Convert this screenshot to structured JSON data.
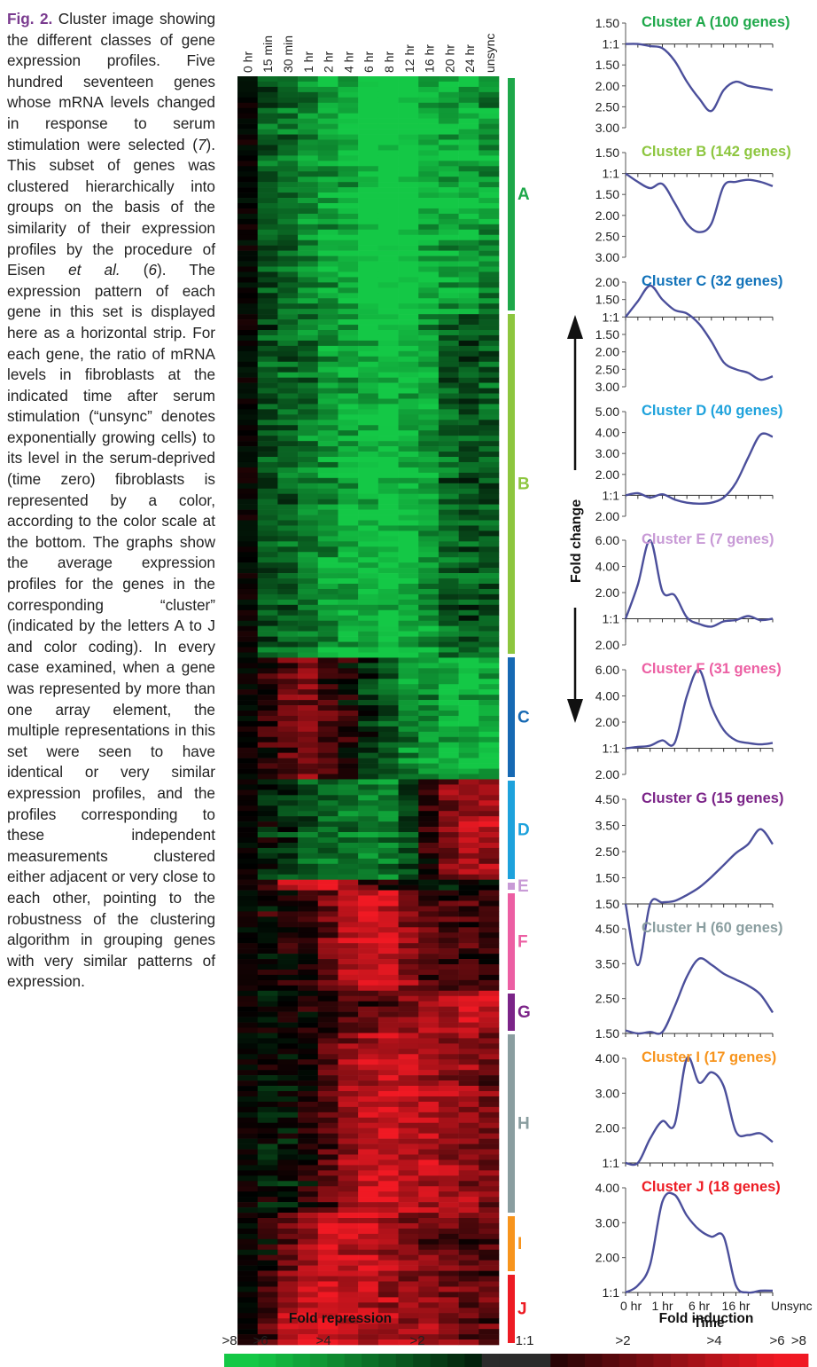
{
  "caption": {
    "label": "Fig. 2.",
    "text_before_ref1": " Cluster image showing the different classes of gene expression profiles. Five hundred seventeen genes whose mRNA levels changed in response to serum stimulation were selected (",
    "ref1": "7",
    "text_before_ref2": "). This subset of genes was clustered hierarchically into groups on the basis of the similarity of their expression profiles by the procedure of Eisen ",
    "etal": "et al.",
    "ref2_open": " (",
    "ref2": "6",
    "text_rest": "). The expression pattern of each gene in this set is displayed here as a horizontal strip. For each gene, the ratio of mRNA levels in fibroblasts at the indicated time after serum stimulation (“unsync” denotes exponentially growing cells) to its level in the serum-deprived (time zero) fibroblasts is represented by a color, according to the color scale at the bottom. The graphs show the average expression profiles for the genes in the corresponding “cluster” (indicated by the letters A to J and color coding). In every case examined, when a gene was represented by more than one array element, the multiple representations in this set were seen to have identical or very similar expression profiles, and the profiles corresponding to these independent measurements clustered either adjacent or very close to each other, pointing to the robustness of the clustering algorithm in grouping genes with very similar patterns of expression."
  },
  "heatmap": {
    "time_points": [
      "0 hr",
      "15 min",
      "30 min",
      "1 hr",
      "2 hr",
      "4 hr",
      "6 hr",
      "8 hr",
      "12 hr",
      "16 hr",
      "20 hr",
      "24 hr",
      "unsync"
    ],
    "clusters": [
      {
        "letter": "A",
        "color": "#1ea84a",
        "pattern": [
          0,
          -1.3,
          -1.5,
          -2.0,
          -2.4,
          -2.6,
          -3.4,
          -3.6,
          -3.4,
          -2.6,
          -2.5,
          -2.7,
          -2.2
        ]
      },
      {
        "letter": "B",
        "color": "#8dc63f",
        "pattern": [
          0,
          -1.2,
          -1.5,
          -1.8,
          -2.2,
          -2.5,
          -2.8,
          -3.0,
          -2.8,
          -2.3,
          -1.5,
          -1.2,
          -1.4
        ]
      },
      {
        "letter": "C",
        "color": "#1669b3",
        "pattern": [
          0,
          0.6,
          1.2,
          1.6,
          0.9,
          0.3,
          -0.6,
          -1.4,
          -1.9,
          -2.2,
          -2.6,
          -2.7,
          -2.6
        ]
      },
      {
        "letter": "D",
        "color": "#1ea2dc",
        "pattern": [
          0,
          -0.4,
          -0.8,
          -1.2,
          -1.6,
          -1.8,
          -1.9,
          -1.8,
          -1.2,
          0.6,
          1.6,
          2.2,
          2.0
        ]
      },
      {
        "letter": "E",
        "color": "#c89ad6",
        "pattern": [
          0,
          0.6,
          2.4,
          3.2,
          3.0,
          2.4,
          1.0,
          0.4,
          -0.2,
          -0.4,
          -0.3,
          -0.2,
          0.0
        ]
      },
      {
        "letter": "F",
        "color": "#ec5fa3",
        "pattern": [
          0,
          0.2,
          0.4,
          0.6,
          1.4,
          2.2,
          2.8,
          2.8,
          1.8,
          1.0,
          0.8,
          0.8,
          0.6
        ]
      },
      {
        "letter": "G",
        "color": "#7b2488",
        "pattern": [
          0,
          -0.2,
          0.0,
          0.2,
          0.4,
          0.8,
          1.0,
          1.2,
          1.6,
          1.9,
          2.2,
          2.5,
          2.3
        ]
      },
      {
        "letter": "H",
        "color": "#8a9ea0",
        "pattern": [
          0,
          -0.3,
          -0.3,
          0.2,
          1.0,
          1.8,
          2.4,
          2.6,
          2.4,
          2.2,
          2.0,
          1.8,
          1.4
        ]
      },
      {
        "letter": "I",
        "color": "#f7941d",
        "pattern": [
          0,
          0.4,
          1.2,
          1.8,
          2.8,
          2.4,
          2.6,
          2.2,
          1.6,
          1.3,
          1.2,
          1.1,
          0.9
        ]
      },
      {
        "letter": "J",
        "color": "#ed1c24",
        "pattern": [
          0,
          0.8,
          2.0,
          2.6,
          2.8,
          2.6,
          2.2,
          2.0,
          1.8,
          1.6,
          1.4,
          1.2,
          1.0
        ]
      }
    ]
  },
  "chart_data": [
    {
      "type": "line",
      "title": "Cluster A (100 genes)",
      "color": "#1ea84a",
      "y_tick_labels": [
        "1.50",
        "1:1",
        "1.50",
        "2.00",
        "2.50",
        "3.00"
      ],
      "x": [
        0,
        1,
        2,
        3,
        4,
        5,
        6,
        7,
        8,
        9,
        10,
        11,
        12
      ],
      "values": [
        1.0,
        1.0,
        -1.05,
        -1.1,
        -1.4,
        -1.9,
        -2.3,
        -2.6,
        -2.1,
        -1.9,
        -2.0,
        -2.05,
        -2.1
      ]
    },
    {
      "type": "line",
      "title": "Cluster B (142 genes)",
      "color": "#8dc63f",
      "y_tick_labels": [
        "1.50",
        "1:1",
        "1.50",
        "2.00",
        "2.50",
        "3.00"
      ],
      "x": [
        0,
        1,
        2,
        3,
        4,
        5,
        6,
        7,
        8,
        9,
        10,
        11,
        12
      ],
      "values": [
        1.0,
        -1.2,
        -1.35,
        -1.25,
        -1.7,
        -2.2,
        -2.4,
        -2.2,
        -1.3,
        -1.2,
        -1.15,
        -1.2,
        -1.3
      ]
    },
    {
      "type": "line",
      "title": "Cluster C (32 genes)",
      "color": "#1172b9",
      "y_tick_labels": [
        "2.00",
        "1.50",
        "1:1",
        "1.50",
        "2.00",
        "2.50",
        "3.00"
      ],
      "x": [
        0,
        1,
        2,
        3,
        4,
        5,
        6,
        7,
        8,
        9,
        10,
        11,
        12
      ],
      "values": [
        1.0,
        1.45,
        1.9,
        1.5,
        1.2,
        1.1,
        -1.2,
        -1.7,
        -2.3,
        -2.5,
        -2.6,
        -2.8,
        -2.7
      ]
    },
    {
      "type": "line",
      "title": "Cluster D (40 genes)",
      "color": "#1ea2dc",
      "y_tick_labels": [
        "5.00",
        "4.00",
        "3.00",
        "2.00",
        "1:1",
        "2.00"
      ],
      "x": [
        0,
        1,
        2,
        3,
        4,
        5,
        6,
        7,
        8,
        9,
        10,
        11,
        12
      ],
      "values": [
        1.0,
        1.1,
        -1.1,
        1.05,
        -1.2,
        -1.35,
        -1.4,
        -1.35,
        -1.1,
        1.6,
        2.8,
        3.9,
        3.8
      ]
    },
    {
      "type": "line",
      "title": "Cluster E (7 genes)",
      "color": "#c89ad6",
      "y_tick_labels": [
        "6.00",
        "4.00",
        "2.00",
        "1:1",
        "2.00"
      ],
      "x": [
        0,
        1,
        2,
        3,
        4,
        5,
        6,
        7,
        8,
        9,
        10,
        11,
        12
      ],
      "values": [
        1.0,
        2.6,
        6.4,
        2.1,
        1.9,
        1.05,
        -1.2,
        -1.3,
        -1.1,
        -1.05,
        1.1,
        -1.05,
        1.0
      ]
    },
    {
      "type": "line",
      "title": "Cluster F (31 genes)",
      "color": "#ec5fa3",
      "y_tick_labels": [
        "6.00",
        "4.00",
        "2.00",
        "1:1",
        "2.00"
      ],
      "x": [
        0,
        1,
        2,
        3,
        4,
        5,
        6,
        7,
        8,
        9,
        10,
        11,
        12
      ],
      "values": [
        1.0,
        1.05,
        1.1,
        1.3,
        1.2,
        4.0,
        6.4,
        3.2,
        1.7,
        1.3,
        1.2,
        1.15,
        1.2
      ]
    },
    {
      "type": "line",
      "title": "Cluster G (15 genes)",
      "color": "#7b2488",
      "y_tick_labels": [
        "4.50",
        "3.50",
        "2.50",
        "1.50",
        "1.50"
      ],
      "x": [
        0,
        1,
        2,
        3,
        4,
        5,
        6,
        7,
        8,
        9,
        10,
        11,
        12
      ],
      "values": [
        1.0,
        -1.05,
        1.0,
        1.05,
        1.1,
        1.3,
        1.55,
        1.9,
        2.3,
        2.7,
        3.0,
        3.5,
        3.0
      ]
    },
    {
      "type": "line",
      "title": "Cluster H (60 genes)",
      "color": "#8a9ea0",
      "y_tick_labels": [
        "4.50",
        "3.50",
        "2.50",
        "1.50"
      ],
      "x": [
        0,
        1,
        2,
        3,
        4,
        5,
        6,
        7,
        8,
        9,
        10,
        11,
        12
      ],
      "values": [
        1.1,
        1.0,
        1.05,
        1.05,
        1.9,
        2.9,
        3.5,
        3.3,
        3.0,
        2.8,
        2.6,
        2.3,
        1.7
      ]
    },
    {
      "type": "line",
      "title": "Cluster I (17 genes)",
      "color": "#f7941d",
      "y_tick_labels": [
        "4.00",
        "3.00",
        "2.00",
        "1:1"
      ],
      "x": [
        0,
        1,
        2,
        3,
        4,
        5,
        6,
        7,
        8,
        9,
        10,
        11,
        12
      ],
      "values": [
        1.0,
        1.0,
        1.7,
        2.2,
        2.1,
        4.0,
        3.3,
        3.6,
        3.2,
        1.9,
        1.8,
        1.85,
        1.6
      ]
    },
    {
      "type": "line",
      "title": "Cluster J (18 genes)",
      "color": "#ed1c24",
      "y_tick_labels": [
        "4.00",
        "3.00",
        "2.00",
        "1:1"
      ],
      "x": [
        0,
        1,
        2,
        3,
        4,
        5,
        6,
        7,
        8,
        9,
        10,
        11,
        12
      ],
      "values": [
        1.0,
        1.2,
        1.8,
        3.6,
        3.8,
        3.2,
        2.8,
        2.6,
        2.6,
        1.2,
        1.0,
        1.05,
        1.05
      ]
    }
  ],
  "graphs_axis": {
    "x_tick_labels": [
      "0 hr",
      "1 hr",
      "6 hr",
      "16 hr",
      "Unsync"
    ],
    "x_tick_label_positions": [
      0,
      3,
      6,
      9,
      12
    ],
    "xlabel": "Time",
    "ylabel": "Fold change"
  },
  "color_scale": {
    "repression_title": "Fold repression",
    "induction_title": "Fold induction",
    "labels": [
      ">8",
      ">6",
      ">4",
      ">2",
      "1:1",
      ">2",
      ">4",
      ">6",
      ">8"
    ],
    "label_values": [
      -8,
      -6,
      -4,
      -2,
      0,
      2,
      4,
      6,
      8
    ],
    "repression_color": "#00a651",
    "induction_color": "#ed1c24",
    "mid_color": "#000000"
  }
}
